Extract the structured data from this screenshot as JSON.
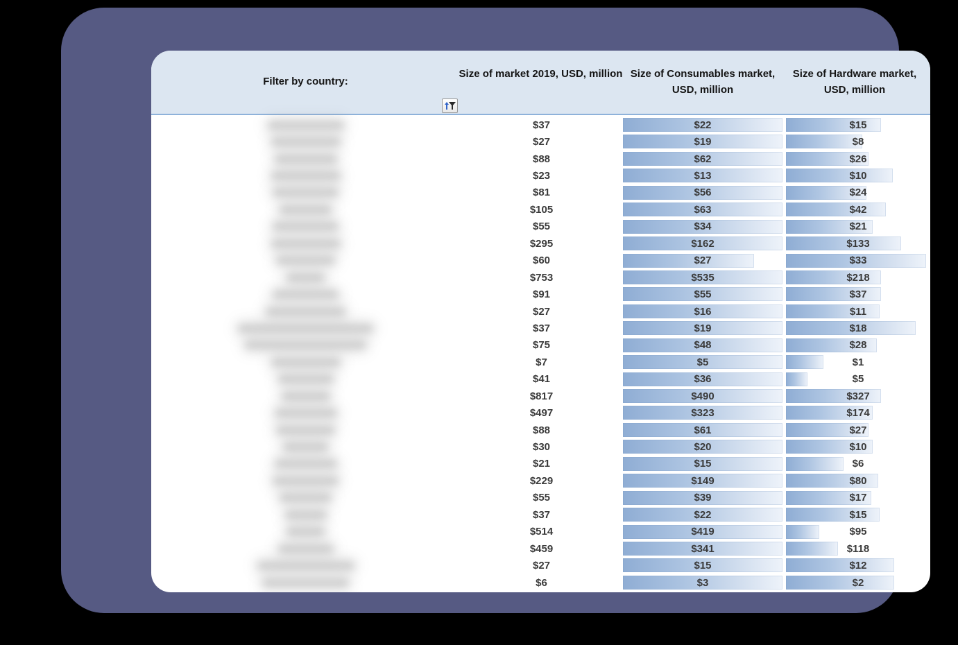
{
  "theme": {
    "outer_background": "#000000",
    "frame_color": "#565a83",
    "content_background": "#ffffff",
    "header_background": "#dce6f1",
    "header_border": "#8eb2da",
    "bar_color_start": "#8fadd4",
    "bar_color_end": "#eef3fa",
    "value_text_color": "#3a3a3a"
  },
  "header": {
    "filter_label": "Filter by country:",
    "filter_button_icon": "sort-filter-icon",
    "columns": [
      {
        "label": "Size of market 2019, USD, million"
      },
      {
        "label": "Size of Consumables market, USD, million"
      },
      {
        "label": "Size of Hardware market, USD, million"
      }
    ]
  },
  "table": {
    "country_column_note": "country names blurred/redacted in screenshot",
    "rows": [
      {
        "total": "$37",
        "consumables": "$22",
        "hardware": "$15",
        "cons_bar_pct": 100,
        "hw_bar_pct": 66,
        "blur_width": 110
      },
      {
        "total": "$27",
        "consumables": "$19",
        "hardware": "$8",
        "cons_bar_pct": 100,
        "hw_bar_pct": 53,
        "blur_width": 100
      },
      {
        "total": "$88",
        "consumables": "$62",
        "hardware": "$26",
        "cons_bar_pct": 100,
        "hw_bar_pct": 57,
        "blur_width": 90
      },
      {
        "total": "$23",
        "consumables": "$13",
        "hardware": "$10",
        "cons_bar_pct": 100,
        "hw_bar_pct": 74,
        "blur_width": 100
      },
      {
        "total": "$81",
        "consumables": "$56",
        "hardware": "$24",
        "cons_bar_pct": 100,
        "hw_bar_pct": 56,
        "blur_width": 95
      },
      {
        "total": "$105",
        "consumables": "$63",
        "hardware": "$42",
        "cons_bar_pct": 100,
        "hw_bar_pct": 69,
        "blur_width": 75
      },
      {
        "total": "$55",
        "consumables": "$34",
        "hardware": "$21",
        "cons_bar_pct": 100,
        "hw_bar_pct": 60,
        "blur_width": 95
      },
      {
        "total": "$295",
        "consumables": "$162",
        "hardware": "$133",
        "cons_bar_pct": 100,
        "hw_bar_pct": 80,
        "blur_width": 100
      },
      {
        "total": "$60",
        "consumables": "$27",
        "hardware": "$33",
        "cons_bar_pct": 82,
        "hw_bar_pct": 97,
        "blur_width": 85
      },
      {
        "total": "$753",
        "consumables": "$535",
        "hardware": "$218",
        "cons_bar_pct": 100,
        "hw_bar_pct": 66,
        "blur_width": 55
      },
      {
        "total": "$91",
        "consumables": "$55",
        "hardware": "$37",
        "cons_bar_pct": 100,
        "hw_bar_pct": 66,
        "blur_width": 95
      },
      {
        "total": "$27",
        "consumables": "$16",
        "hardware": "$11",
        "cons_bar_pct": 100,
        "hw_bar_pct": 65,
        "blur_width": 115
      },
      {
        "total": "$37",
        "consumables": "$19",
        "hardware": "$18",
        "cons_bar_pct": 100,
        "hw_bar_pct": 90,
        "blur_width": 195
      },
      {
        "total": "$75",
        "consumables": "$48",
        "hardware": "$28",
        "cons_bar_pct": 100,
        "hw_bar_pct": 63,
        "blur_width": 175
      },
      {
        "total": "$7",
        "consumables": "$5",
        "hardware": "$1",
        "cons_bar_pct": 100,
        "hw_bar_pct": 26,
        "blur_width": 100
      },
      {
        "total": "$41",
        "consumables": "$36",
        "hardware": "$5",
        "cons_bar_pct": 100,
        "hw_bar_pct": 15,
        "blur_width": 80
      },
      {
        "total": "$817",
        "consumables": "$490",
        "hardware": "$327",
        "cons_bar_pct": 100,
        "hw_bar_pct": 66,
        "blur_width": 70
      },
      {
        "total": "$497",
        "consumables": "$323",
        "hardware": "$174",
        "cons_bar_pct": 100,
        "hw_bar_pct": 60,
        "blur_width": 90
      },
      {
        "total": "$88",
        "consumables": "$61",
        "hardware": "$27",
        "cons_bar_pct": 100,
        "hw_bar_pct": 57,
        "blur_width": 85
      },
      {
        "total": "$30",
        "consumables": "$20",
        "hardware": "$10",
        "cons_bar_pct": 100,
        "hw_bar_pct": 60,
        "blur_width": 65
      },
      {
        "total": "$21",
        "consumables": "$15",
        "hardware": "$6",
        "cons_bar_pct": 100,
        "hw_bar_pct": 40,
        "blur_width": 90
      },
      {
        "total": "$229",
        "consumables": "$149",
        "hardware": "$80",
        "cons_bar_pct": 100,
        "hw_bar_pct": 64,
        "blur_width": 95
      },
      {
        "total": "$55",
        "consumables": "$39",
        "hardware": "$17",
        "cons_bar_pct": 100,
        "hw_bar_pct": 59,
        "blur_width": 75
      },
      {
        "total": "$37",
        "consumables": "$22",
        "hardware": "$15",
        "cons_bar_pct": 100,
        "hw_bar_pct": 65,
        "blur_width": 60
      },
      {
        "total": "$514",
        "consumables": "$419",
        "hardware": "$95",
        "cons_bar_pct": 100,
        "hw_bar_pct": 23,
        "blur_width": 55
      },
      {
        "total": "$459",
        "consumables": "$341",
        "hardware": "$118",
        "cons_bar_pct": 100,
        "hw_bar_pct": 36,
        "blur_width": 80
      },
      {
        "total": "$27",
        "consumables": "$15",
        "hardware": "$12",
        "cons_bar_pct": 100,
        "hw_bar_pct": 75,
        "blur_width": 140
      },
      {
        "total": "$6",
        "consumables": "$3",
        "hardware": "$2",
        "cons_bar_pct": 100,
        "hw_bar_pct": 75,
        "blur_width": 125
      }
    ]
  }
}
